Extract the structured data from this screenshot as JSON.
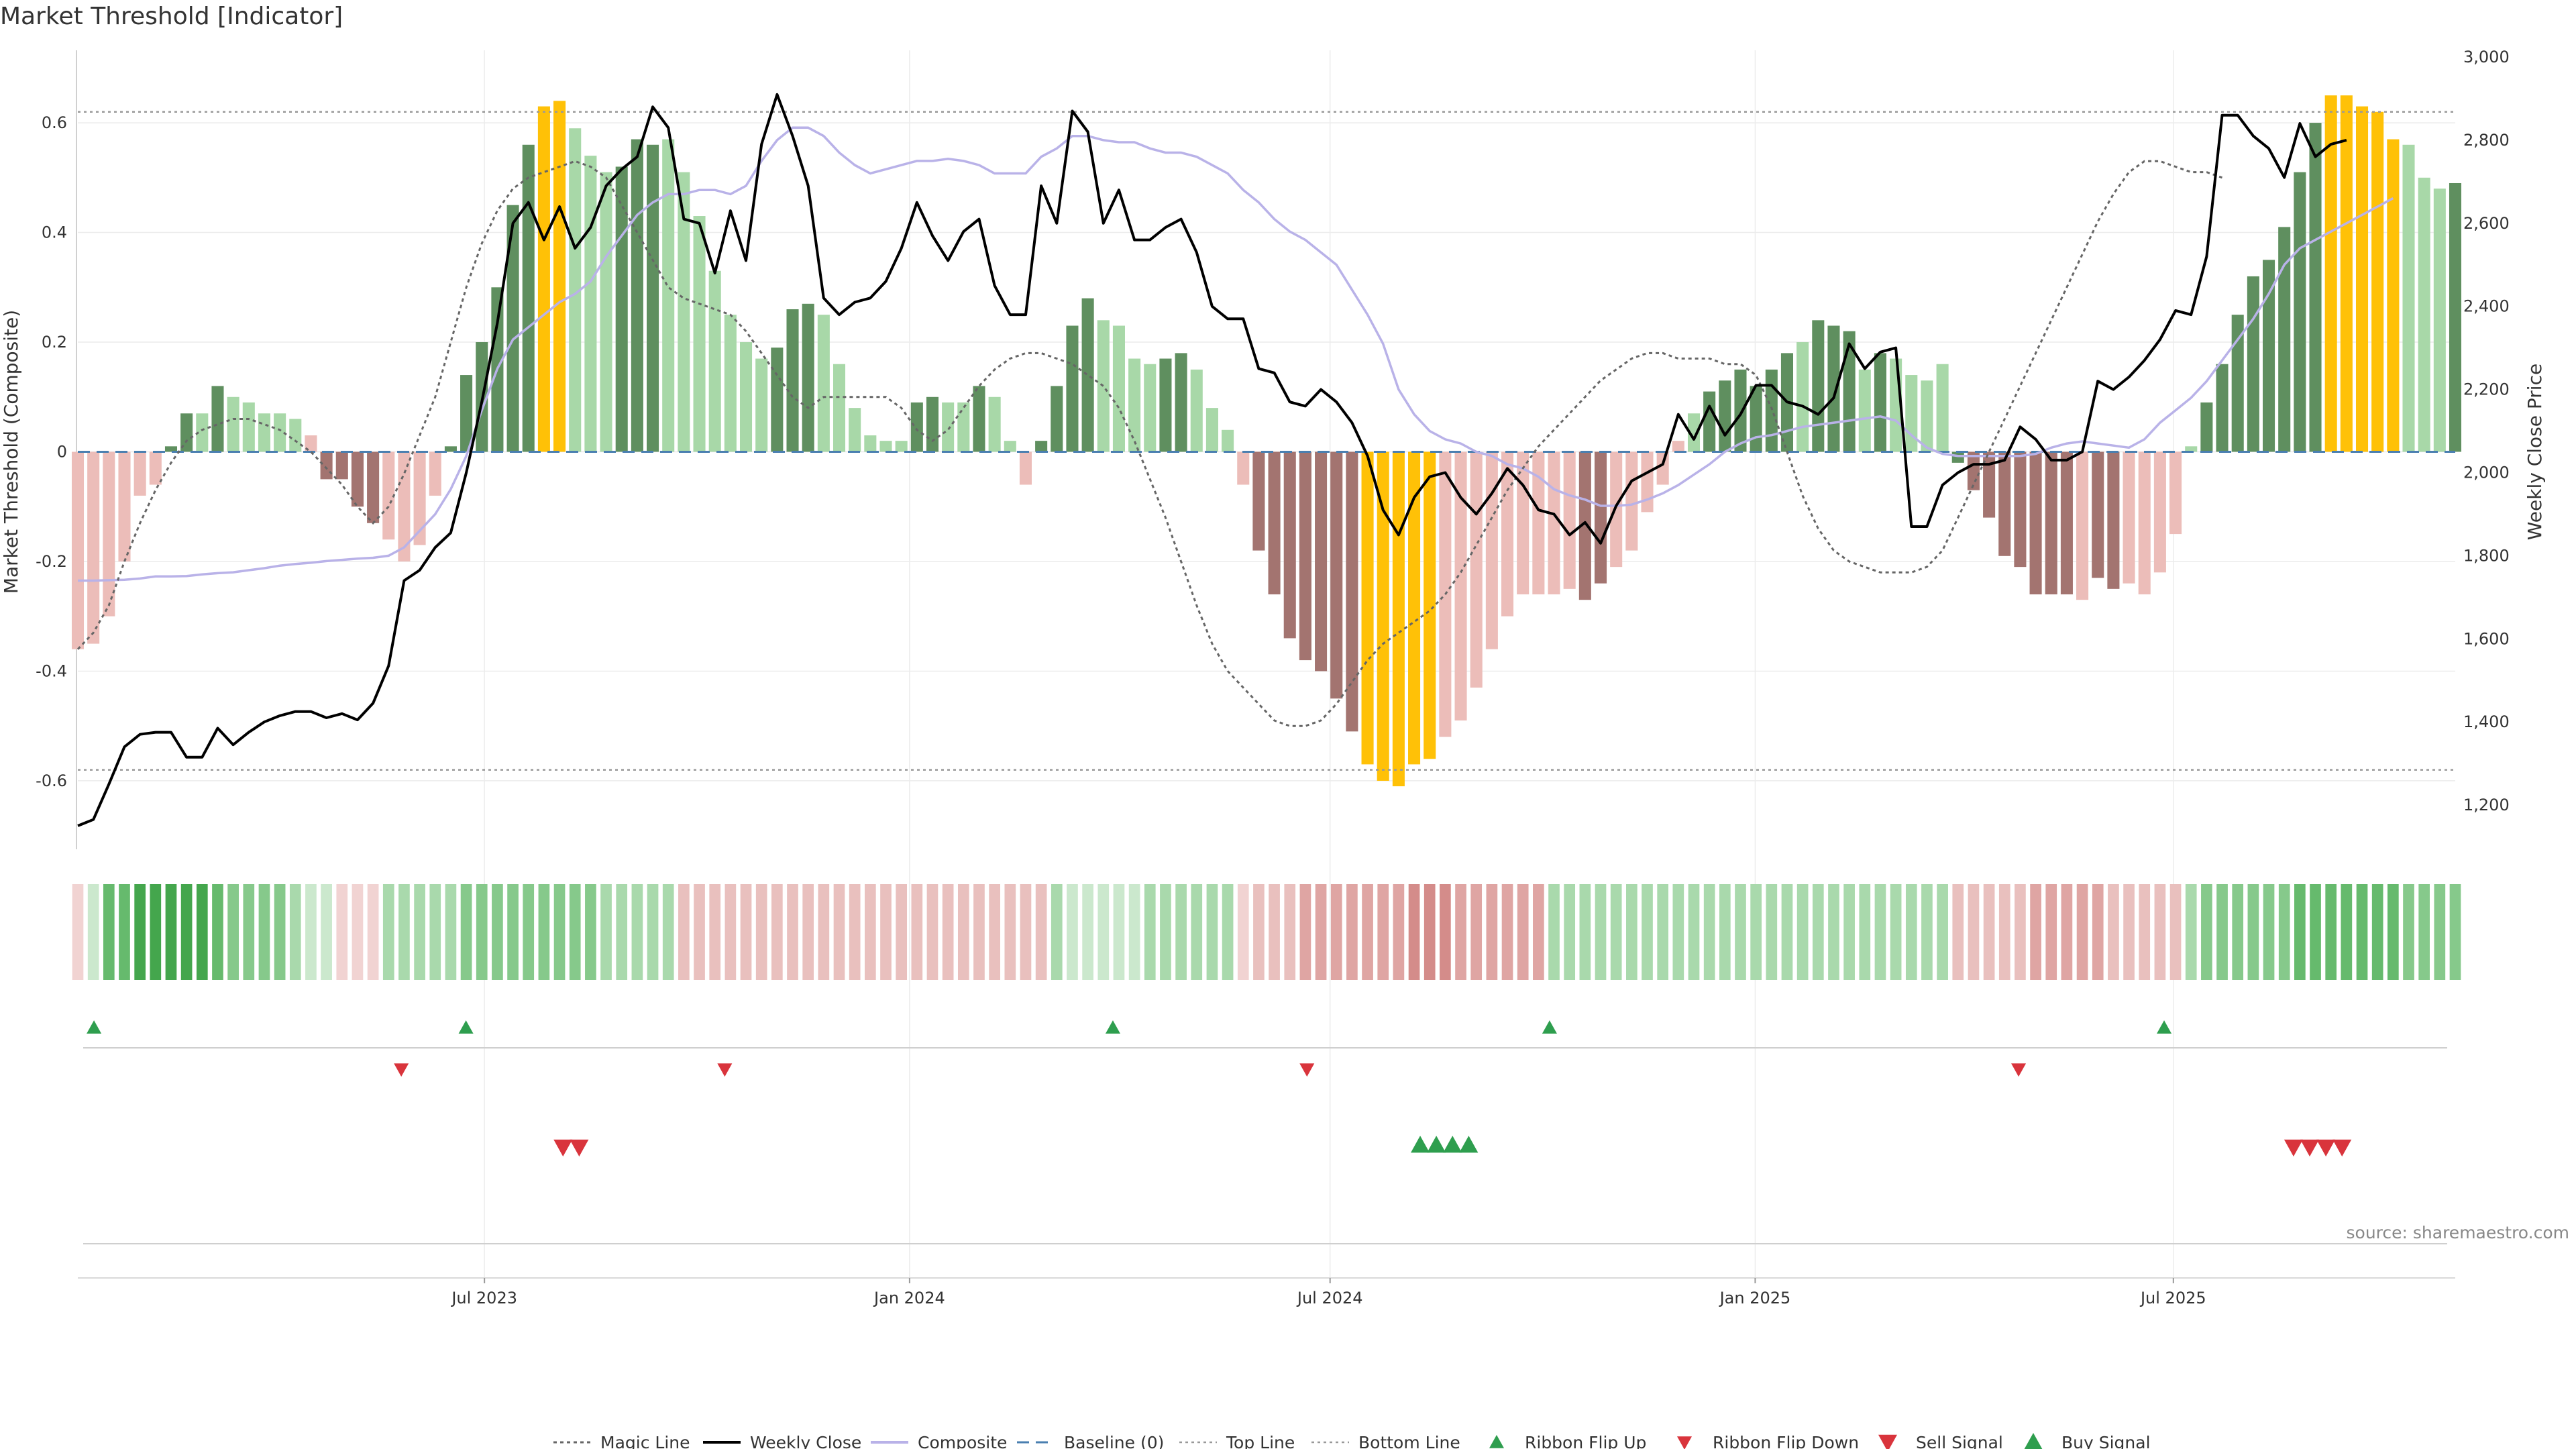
{
  "title": "Market Threshold [Indicator]",
  "source": "source: sharemaestro.com",
  "colors": {
    "dark_green": "#5f8f5f",
    "light_green": "#a8d8a8",
    "gold": "#ffc107",
    "dark_red": "#a37470",
    "light_red": "#ecbdb9",
    "weekly_close": "#000000",
    "composite": "#b9b2e8",
    "magic_line": "#666666",
    "baseline": "#4a7fb0",
    "threshold_line": "#999999",
    "signal_green": "#2e9e4e",
    "signal_red": "#d9343c"
  },
  "chart_data": {
    "type": "bar",
    "ylabel_left": "Market Threshold (Composite)",
    "ylabel_right": "Weekly Close Price",
    "ylim_left": [
      -0.72,
      0.72
    ],
    "ylim_right": [
      1100,
      3000
    ],
    "yticks_left": [
      "0.6",
      "0.4",
      "0.2",
      "0",
      "-0.2",
      "-0.4",
      "-0.6"
    ],
    "yticks_left_values": [
      0.6,
      0.4,
      0.2,
      0,
      -0.2,
      -0.4,
      -0.6
    ],
    "yticks_right": [
      "3,000",
      "2,800",
      "2,600",
      "2,400",
      "2,200",
      "2,000",
      "1,800",
      "1,600",
      "1,400",
      "1,200"
    ],
    "yticks_right_values": [
      3000,
      2800,
      2600,
      2400,
      2200,
      2000,
      1800,
      1600,
      1400,
      1200
    ],
    "x_start": "2023-01-06",
    "x_end": "2025-10-31",
    "xticks": [
      {
        "label": "Jul 2023",
        "date": "2023-07-01"
      },
      {
        "label": "Jan 2024",
        "date": "2024-01-01"
      },
      {
        "label": "Jul 2024",
        "date": "2024-07-01"
      },
      {
        "label": "Jan 2025",
        "date": "2025-01-01"
      },
      {
        "label": "Jul 2025",
        "date": "2025-07-01"
      }
    ],
    "top_line": 0.62,
    "bottom_line": -0.58,
    "bar_colors": "g = rising positive, lg = falling positive, y = extreme, r = falling negative, lr = rising negative",
    "composite": [
      -0.36,
      -0.35,
      -0.3,
      -0.2,
      -0.08,
      -0.06,
      0.01,
      0.07,
      0.07,
      0.12,
      0.1,
      0.09,
      0.07,
      0.07,
      0.06,
      0.03,
      -0.05,
      -0.05,
      -0.1,
      -0.13,
      -0.16,
      -0.2,
      -0.17,
      -0.08,
      0.01,
      0.14,
      0.2,
      0.3,
      0.45,
      0.56,
      0.63,
      0.64,
      0.59,
      0.54,
      0.51,
      0.52,
      0.57,
      0.56,
      0.57,
      0.51,
      0.43,
      0.33,
      0.25,
      0.2,
      0.17,
      0.19,
      0.26,
      0.27,
      0.25,
      0.16,
      0.08,
      0.03,
      0.02,
      0.02,
      0.09,
      0.1,
      0.09,
      0.09,
      0.12,
      0.1,
      0.02,
      -0.06,
      0.02,
      0.12,
      0.23,
      0.28,
      0.24,
      0.23,
      0.17,
      0.16,
      0.17,
      0.18,
      0.15,
      0.08,
      0.04,
      -0.06,
      -0.18,
      -0.26,
      -0.34,
      -0.38,
      -0.4,
      -0.45,
      -0.51,
      -0.57,
      -0.6,
      -0.61,
      -0.57,
      -0.56,
      -0.52,
      -0.49,
      -0.43,
      -0.36,
      -0.3,
      -0.26,
      -0.26,
      -0.26,
      -0.25,
      -0.27,
      -0.24,
      -0.21,
      -0.18,
      -0.11,
      -0.06,
      0.02,
      0.07,
      0.11,
      0.13,
      0.15,
      0.12,
      0.15,
      0.18,
      0.2,
      0.24,
      0.23,
      0.22,
      0.15,
      0.18,
      0.17,
      0.14,
      0.13,
      0.16,
      -0.02,
      -0.07,
      -0.12,
      -0.19,
      -0.21,
      -0.26,
      -0.26,
      -0.26,
      -0.27,
      -0.23,
      -0.25,
      -0.24,
      -0.26,
      -0.22,
      -0.15,
      0.01,
      0.09,
      0.16,
      0.25,
      0.32,
      0.35,
      0.41,
      0.51,
      0.6,
      0.65,
      0.65,
      0.63,
      0.62,
      0.57,
      0.56,
      0.5,
      0.48,
      0.49
    ],
    "bar_color": [
      "lr",
      "lr",
      "lr",
      "lr",
      "lr",
      "lr",
      "g",
      "g",
      "lg",
      "g",
      "lg",
      "lg",
      "lg",
      "lg",
      "lg",
      "lr",
      "r",
      "r",
      "r",
      "r",
      "lr",
      "lr",
      "lr",
      "lr",
      "g",
      "g",
      "g",
      "g",
      "g",
      "g",
      "y",
      "y",
      "lg",
      "lg",
      "lg",
      "g",
      "g",
      "g",
      "lg",
      "lg",
      "lg",
      "lg",
      "lg",
      "lg",
      "lg",
      "g",
      "g",
      "g",
      "lg",
      "lg",
      "lg",
      "lg",
      "lg",
      "lg",
      "g",
      "g",
      "lg",
      "lg",
      "g",
      "lg",
      "lg",
      "lr",
      "g",
      "g",
      "g",
      "g",
      "lg",
      "lg",
      "lg",
      "lg",
      "g",
      "g",
      "lg",
      "lg",
      "lg",
      "lr",
      "r",
      "r",
      "r",
      "r",
      "r",
      "r",
      "r",
      "y",
      "y",
      "y",
      "y",
      "y",
      "lr",
      "lr",
      "lr",
      "lr",
      "lr",
      "lr",
      "lr",
      "lr",
      "lr",
      "r",
      "r",
      "lr",
      "lr",
      "lr",
      "lr",
      "lr",
      "lg",
      "g",
      "g",
      "g",
      "g",
      "g",
      "g",
      "lg",
      "g",
      "g",
      "g",
      "lg",
      "g",
      "lg",
      "lg",
      "lg",
      "lg",
      "g",
      "r",
      "r",
      "r",
      "r",
      "r",
      "r",
      "r",
      "lr",
      "r",
      "r",
      "lr",
      "lr",
      "lr",
      "lr",
      "lg",
      "g",
      "g",
      "g",
      "g",
      "g",
      "g",
      "g",
      "g",
      "y",
      "y",
      "y",
      "y",
      "y",
      "lg",
      "lg",
      "lg",
      "g"
    ],
    "magic_line": [
      -0.36,
      -0.33,
      -0.28,
      -0.2,
      -0.13,
      -0.07,
      -0.02,
      0.02,
      0.04,
      0.05,
      0.06,
      0.06,
      0.05,
      0.04,
      0.02,
      0.0,
      -0.03,
      -0.06,
      -0.1,
      -0.13,
      -0.1,
      -0.04,
      0.03,
      0.1,
      0.2,
      0.3,
      0.38,
      0.44,
      0.48,
      0.5,
      0.51,
      0.52,
      0.53,
      0.52,
      0.5,
      0.45,
      0.4,
      0.35,
      0.3,
      0.28,
      0.27,
      0.26,
      0.25,
      0.22,
      0.18,
      0.14,
      0.1,
      0.08,
      0.1,
      0.1,
      0.1,
      0.1,
      0.1,
      0.08,
      0.04,
      0.02,
      0.04,
      0.08,
      0.12,
      0.15,
      0.17,
      0.18,
      0.18,
      0.17,
      0.16,
      0.14,
      0.12,
      0.08,
      0.02,
      -0.05,
      -0.12,
      -0.2,
      -0.28,
      -0.35,
      -0.4,
      -0.43,
      -0.46,
      -0.49,
      -0.5,
      -0.5,
      -0.49,
      -0.46,
      -0.42,
      -0.38,
      -0.35,
      -0.33,
      -0.31,
      -0.29,
      -0.26,
      -0.22,
      -0.17,
      -0.12,
      -0.07,
      -0.03,
      0.01,
      0.04,
      0.07,
      0.1,
      0.13,
      0.15,
      0.17,
      0.18,
      0.18,
      0.17,
      0.17,
      0.17,
      0.16,
      0.16,
      0.14,
      0.08,
      0.0,
      -0.08,
      -0.14,
      -0.18,
      -0.2,
      -0.21,
      -0.22,
      -0.22,
      -0.22,
      -0.21,
      -0.18,
      -0.12,
      -0.06,
      0.0,
      0.06,
      0.12,
      0.18,
      0.24,
      0.3,
      0.36,
      0.42,
      0.47,
      0.51,
      0.53,
      0.53,
      0.52,
      0.51,
      0.51,
      0.5
    ],
    "weekly_close": [
      1150,
      1165,
      1250,
      1340,
      1370,
      1375,
      1375,
      1315,
      1315,
      1385,
      1345,
      1375,
      1400,
      1415,
      1425,
      1425,
      1410,
      1420,
      1405,
      1445,
      1535,
      1740,
      1765,
      1820,
      1855,
      2000,
      2170,
      2360,
      2600,
      2650,
      2560,
      2640,
      2540,
      2590,
      2690,
      2730,
      2760,
      2880,
      2830,
      2610,
      2600,
      2480,
      2630,
      2510,
      2790,
      2910,
      2810,
      2690,
      2420,
      2380,
      2410,
      2420,
      2460,
      2540,
      2650,
      2570,
      2510,
      2580,
      2610,
      2450,
      2380,
      2380,
      2690,
      2600,
      2870,
      2820,
      2600,
      2680,
      2560,
      2560,
      2590,
      2610,
      2530,
      2400,
      2370,
      2370,
      2250,
      2240,
      2170,
      2160,
      2200,
      2170,
      2120,
      2040,
      1910,
      1850,
      1940,
      1990,
      2000,
      1940,
      1900,
      1950,
      2010,
      1970,
      1910,
      1900,
      1850,
      1880,
      1830,
      1920,
      1980,
      2000,
      2020,
      2140,
      2080,
      2160,
      2090,
      2140,
      2210,
      2210,
      2170,
      2160,
      2140,
      2180,
      2310,
      2250,
      2290,
      2300,
      1870,
      1870,
      1970,
      2000,
      2020,
      2020,
      2030,
      2110,
      2080,
      2030,
      2030,
      2050,
      2220,
      2200,
      2230,
      2270,
      2320,
      2390,
      2380,
      2520,
      2860,
      2860,
      2810,
      2780,
      2710,
      2840,
      2760,
      2790,
      2800
    ],
    "composite_line": [
      1740,
      1740,
      1741,
      1742,
      1745,
      1750,
      1750,
      1751,
      1755,
      1758,
      1760,
      1765,
      1770,
      1776,
      1780,
      1783,
      1787,
      1790,
      1793,
      1795,
      1800,
      1820,
      1860,
      1900,
      1960,
      2040,
      2150,
      2250,
      2320,
      2350,
      2380,
      2410,
      2430,
      2460,
      2520,
      2570,
      2620,
      2650,
      2670,
      2670,
      2680,
      2680,
      2670,
      2690,
      2750,
      2800,
      2830,
      2830,
      2810,
      2770,
      2740,
      2720,
      2730,
      2740,
      2750,
      2750,
      2755,
      2750,
      2740,
      2720,
      2720,
      2720,
      2760,
      2780,
      2810,
      2810,
      2800,
      2795,
      2795,
      2780,
      2770,
      2770,
      2760,
      2740,
      2720,
      2680,
      2650,
      2610,
      2580,
      2560,
      2530,
      2500,
      2440,
      2380,
      2310,
      2200,
      2140,
      2100,
      2080,
      2070,
      2050,
      2040,
      2020,
      2010,
      1990,
      1960,
      1945,
      1935,
      1920,
      1920,
      1923,
      1935,
      1950,
      1970,
      1995,
      2020,
      2050,
      2070,
      2085,
      2090,
      2100,
      2110,
      2115,
      2120,
      2125,
      2130,
      2135,
      2125,
      2090,
      2060,
      2045,
      2040,
      2040,
      2040,
      2040,
      2040,
      2045,
      2060,
      2070,
      2075,
      2070,
      2065,
      2060,
      2080,
      2120,
      2150,
      2180,
      2220,
      2270,
      2320,
      2370,
      2430,
      2500,
      2540,
      2560,
      2580,
      2600,
      2620,
      2640,
      2660
    ],
    "ribbon": [
      "lr1",
      "lg1",
      "g3",
      "g3",
      "g4",
      "g4",
      "g4",
      "g4",
      "g4",
      "g3",
      "g2",
      "g2",
      "g2",
      "g2",
      "g1",
      "lg1",
      "lg1",
      "lr1",
      "lr1",
      "lr1",
      "g1",
      "g1",
      "g1",
      "g1",
      "g1",
      "g2",
      "g2",
      "g2",
      "g2",
      "g2",
      "g2",
      "g2",
      "g2",
      "g2",
      "g1",
      "g1",
      "g1",
      "g1",
      "g1",
      "lr2",
      "lr2",
      "lr2",
      "lr2",
      "lr2",
      "lr2",
      "lr2",
      "lr2",
      "lr2",
      "lr2",
      "lr2",
      "lr2",
      "lr2",
      "lr2",
      "lr2",
      "lr2",
      "lr2",
      "lr2",
      "lr2",
      "lr2",
      "lr2",
      "lr2",
      "lr2",
      "lr2",
      "g1",
      "lg1",
      "lg1",
      "lg1",
      "lg1",
      "lg1",
      "g1",
      "g1",
      "g1",
      "g1",
      "g1",
      "g1",
      "lr1",
      "lr2",
      "lr2",
      "lr2",
      "lr3",
      "lr3",
      "lr3",
      "lr3",
      "lr3",
      "lr3",
      "lr3",
      "lr4",
      "lr4",
      "lr4",
      "lr3",
      "lr3",
      "lr3",
      "lr3",
      "lr3",
      "lr3",
      "g1",
      "g1",
      "g1",
      "g1",
      "g1",
      "g1",
      "g1",
      "g1",
      "g1",
      "g1",
      "g1",
      "g1",
      "g1",
      "g1",
      "g1",
      "g1",
      "g1",
      "g1",
      "g1",
      "g1",
      "g1",
      "g1",
      "g1",
      "g1",
      "g1",
      "g1",
      "lr2",
      "lr2",
      "lr2",
      "lr2",
      "lr2",
      "lr3",
      "lr3",
      "lr3",
      "lr3",
      "lr3",
      "lr2",
      "lr2",
      "lr2",
      "lr2",
      "lr2",
      "g1",
      "g2",
      "g2",
      "g2",
      "g2",
      "g2",
      "g2",
      "g3",
      "g3",
      "g3",
      "g3",
      "g3",
      "g3",
      "g3",
      "g2",
      "g2",
      "g2",
      "g2"
    ],
    "ribbon_flip_up": [
      "2023-01-13",
      "2023-06-23",
      "2024-03-29",
      "2024-10-04",
      "2025-06-27"
    ],
    "ribbon_flip_down": [
      "2023-05-26",
      "2023-10-13",
      "2024-06-21",
      "2025-04-25"
    ],
    "sell_signal": [
      "2023-08-04",
      "2023-08-11",
      "2025-08-22",
      "2025-08-29",
      "2025-09-05",
      "2025-09-12"
    ],
    "buy_signal": [
      "2024-08-09",
      "2024-08-16",
      "2024-08-23",
      "2024-08-30"
    ],
    "legend": [
      "Magic Line",
      "Weekly Close",
      "Composite",
      "Baseline (0)",
      "Top Line",
      "Bottom Line",
      "Ribbon Flip Up",
      "Ribbon Flip Down",
      "Sell Signal",
      "Buy Signal"
    ]
  }
}
